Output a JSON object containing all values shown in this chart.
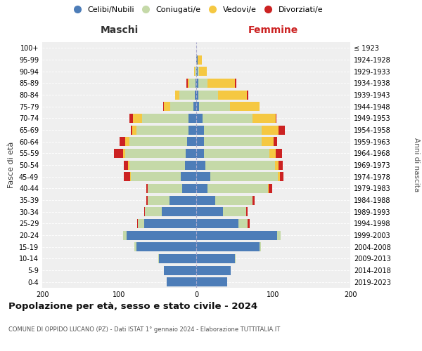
{
  "age_groups": [
    "0-4",
    "5-9",
    "10-14",
    "15-19",
    "20-24",
    "25-29",
    "30-34",
    "35-39",
    "40-44",
    "45-49",
    "50-54",
    "55-59",
    "60-64",
    "65-69",
    "70-74",
    "75-79",
    "80-84",
    "85-89",
    "90-94",
    "95-99",
    "100+"
  ],
  "birth_years": [
    "2019-2023",
    "2014-2018",
    "2009-2013",
    "2004-2008",
    "1999-2003",
    "1994-1998",
    "1989-1993",
    "1984-1988",
    "1979-1983",
    "1974-1978",
    "1969-1973",
    "1964-1968",
    "1959-1963",
    "1954-1958",
    "1949-1953",
    "1944-1948",
    "1939-1943",
    "1934-1938",
    "1929-1933",
    "1924-1928",
    "≤ 1923"
  ],
  "maschi": {
    "celibe": [
      38,
      42,
      48,
      78,
      90,
      68,
      45,
      35,
      18,
      20,
      15,
      14,
      12,
      10,
      10,
      4,
      2,
      1,
      0,
      0,
      0
    ],
    "coniugato": [
      0,
      0,
      1,
      2,
      5,
      8,
      22,
      28,
      45,
      65,
      72,
      78,
      75,
      68,
      60,
      30,
      20,
      8,
      2,
      0,
      0
    ],
    "vedovo": [
      0,
      0,
      0,
      0,
      0,
      0,
      0,
      0,
      0,
      1,
      2,
      3,
      5,
      5,
      12,
      8,
      5,
      2,
      1,
      0,
      0
    ],
    "divorziato": [
      0,
      0,
      0,
      0,
      0,
      1,
      1,
      2,
      2,
      8,
      5,
      12,
      8,
      2,
      5,
      1,
      0,
      2,
      0,
      0,
      0
    ]
  },
  "femmine": {
    "nubile": [
      40,
      45,
      50,
      82,
      105,
      55,
      35,
      25,
      15,
      18,
      12,
      10,
      10,
      10,
      8,
      4,
      3,
      3,
      2,
      2,
      0
    ],
    "coniugata": [
      0,
      0,
      1,
      2,
      5,
      12,
      30,
      48,
      78,
      88,
      90,
      85,
      75,
      75,
      65,
      40,
      25,
      12,
      2,
      0,
      0
    ],
    "vedova": [
      0,
      0,
      0,
      0,
      0,
      0,
      0,
      0,
      1,
      3,
      5,
      8,
      15,
      22,
      30,
      38,
      38,
      35,
      10,
      5,
      0
    ],
    "divorziata": [
      0,
      0,
      0,
      0,
      0,
      2,
      2,
      3,
      5,
      4,
      5,
      8,
      5,
      8,
      1,
      0,
      2,
      2,
      0,
      0,
      0
    ]
  },
  "colors": {
    "celibe": "#4d7db8",
    "coniugato": "#c5d9a8",
    "vedovo": "#f5c842",
    "divorziato": "#cc2222"
  },
  "legend_labels": [
    "Celibi/Nubili",
    "Coniugati/e",
    "Vedovi/e",
    "Divorziati/e"
  ],
  "title_main": "Popolazione per età, sesso e stato civile - 2024",
  "title_sub": "COMUNE DI OPPIDO LUCANO (PZ) - Dati ISTAT 1° gennaio 2024 - Elaborazione TUTTITALIA.IT",
  "xlabel_left": "Maschi",
  "xlabel_right": "Femmine",
  "ylabel_left": "Fasce di età",
  "ylabel_right": "Anni di nascita",
  "xlim": 200,
  "background_color": "#ffffff",
  "plot_bg": "#efefef"
}
